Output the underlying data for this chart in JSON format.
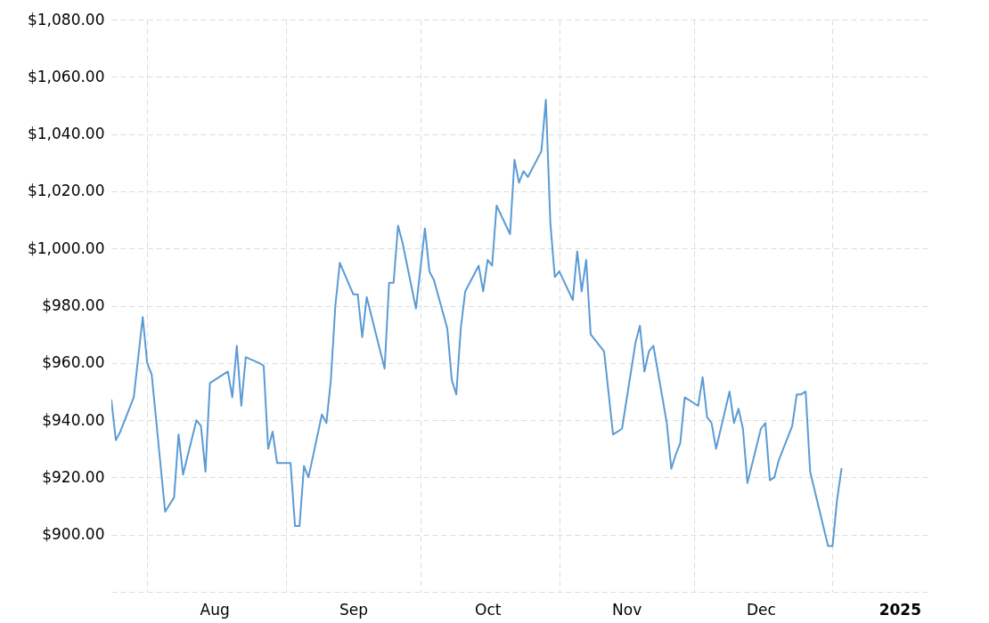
{
  "chart_data": {
    "type": "line",
    "x": [
      "2024-07-24",
      "2024-07-25",
      "2024-07-26",
      "2024-07-29",
      "2024-07-31",
      "2024-08-01",
      "2024-08-02",
      "2024-08-05",
      "2024-08-07",
      "2024-08-08",
      "2024-08-09",
      "2024-08-12",
      "2024-08-13",
      "2024-08-14",
      "2024-08-15",
      "2024-08-19",
      "2024-08-20",
      "2024-08-21",
      "2024-08-22",
      "2024-08-23",
      "2024-08-26",
      "2024-08-27",
      "2024-08-28",
      "2024-08-29",
      "2024-08-30",
      "2024-09-02",
      "2024-09-03",
      "2024-09-04",
      "2024-09-05",
      "2024-09-06",
      "2024-09-09",
      "2024-09-10",
      "2024-09-11",
      "2024-09-12",
      "2024-09-13",
      "2024-09-16",
      "2024-09-17",
      "2024-09-18",
      "2024-09-19",
      "2024-09-23",
      "2024-09-24",
      "2024-09-25",
      "2024-09-26",
      "2024-09-27",
      "2024-09-30",
      "2024-10-02",
      "2024-10-03",
      "2024-10-04",
      "2024-10-07",
      "2024-10-08",
      "2024-10-09",
      "2024-10-10",
      "2024-10-11",
      "2024-10-14",
      "2024-10-15",
      "2024-10-16",
      "2024-10-17",
      "2024-10-18",
      "2024-10-21",
      "2024-10-22",
      "2024-10-23",
      "2024-10-24",
      "2024-10-25",
      "2024-10-28",
      "2024-10-29",
      "2024-10-30",
      "2024-10-31",
      "2024-11-01",
      "2024-11-04",
      "2024-11-05",
      "2024-11-06",
      "2024-11-07",
      "2024-11-08",
      "2024-11-11",
      "2024-11-13",
      "2024-11-15",
      "2024-11-18",
      "2024-11-19",
      "2024-11-20",
      "2024-11-21",
      "2024-11-22",
      "2024-11-25",
      "2024-11-26",
      "2024-11-27",
      "2024-11-28",
      "2024-11-29",
      "2024-12-02",
      "2024-12-03",
      "2024-12-04",
      "2024-12-05",
      "2024-12-06",
      "2024-12-09",
      "2024-12-10",
      "2024-12-11",
      "2024-12-12",
      "2024-12-13",
      "2024-12-16",
      "2024-12-17",
      "2024-12-18",
      "2024-12-19",
      "2024-12-20",
      "2024-12-23",
      "2024-12-24",
      "2024-12-25",
      "2024-12-26",
      "2024-12-27",
      "2024-12-31",
      "2025-01-01",
      "2025-01-02",
      "2025-01-03"
    ],
    "series": [
      {
        "color": "#5b9bd5",
        "values": [
          947,
          933,
          936,
          948,
          976,
          960,
          956,
          908,
          913,
          935,
          921,
          940,
          938,
          922,
          953,
          957,
          948,
          966,
          945,
          962,
          960,
          959,
          930,
          936,
          925,
          925,
          903,
          903,
          924,
          920,
          942,
          939,
          954,
          980,
          995,
          984,
          984,
          969,
          983,
          958,
          988,
          988,
          1008,
          1002,
          979,
          1007,
          992,
          989,
          972,
          954,
          949,
          972,
          985,
          994,
          985,
          996,
          994,
          1015,
          1005,
          1031,
          1023,
          1027,
          1025,
          1034,
          1052,
          1009,
          990,
          992,
          982,
          999,
          985,
          996,
          970,
          964,
          935,
          937,
          967,
          973,
          957,
          964,
          966,
          939,
          923,
          928,
          932,
          948,
          945,
          955,
          941,
          939,
          930,
          950,
          939,
          944,
          937,
          918,
          937,
          939,
          919,
          920,
          926,
          938,
          949,
          949,
          950,
          922,
          896,
          896,
          912,
          923
        ]
      }
    ],
    "xlim": [
      "2024-07-24",
      "2025-01-23"
    ],
    "xticks": [
      {
        "value": "2024-08-01",
        "label": null
      },
      {
        "value": "2024-08-16",
        "label": "Aug"
      },
      {
        "value": "2024-09-01",
        "label": null
      },
      {
        "value": "2024-09-16",
        "label": "Sep"
      },
      {
        "value": "2024-10-01",
        "label": null
      },
      {
        "value": "2024-10-16",
        "label": "Oct"
      },
      {
        "value": "2024-11-01",
        "label": null
      },
      {
        "value": "2024-11-16",
        "label": "Nov"
      },
      {
        "value": "2024-12-01",
        "label": null
      },
      {
        "value": "2024-12-16",
        "label": "Dec"
      },
      {
        "value": "2025-01-01",
        "label": null
      },
      {
        "value": "2025-01-16",
        "label": "2025"
      }
    ],
    "ylim": [
      880,
      1080
    ],
    "yticks": [
      {
        "value": 880,
        "label": null
      },
      {
        "value": 900,
        "label": "$900.00"
      },
      {
        "value": 920,
        "label": "$920.00"
      },
      {
        "value": 940,
        "label": "$940.00"
      },
      {
        "value": 960,
        "label": "$960.00"
      },
      {
        "value": 980,
        "label": "$980.00"
      },
      {
        "value": 1000,
        "label": "$1,000.00"
      },
      {
        "value": 1020,
        "label": "$1,020.00"
      },
      {
        "value": 1040,
        "label": "$1,040.00"
      },
      {
        "value": 1060,
        "label": "$1,060.00"
      },
      {
        "value": 1080,
        "label": "$1,080.00"
      }
    ],
    "grid": true
  }
}
